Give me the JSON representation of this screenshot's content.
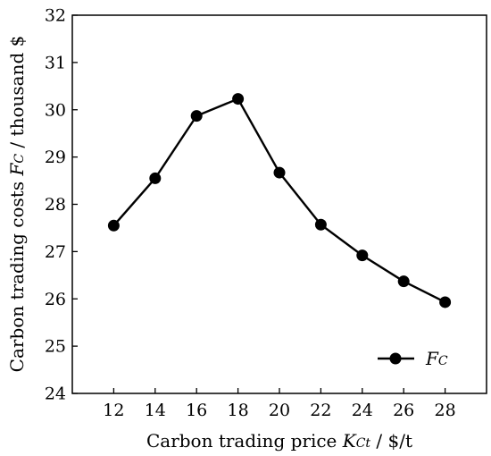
{
  "chart_data": {
    "type": "line",
    "x": [
      12,
      14,
      16,
      18,
      20,
      22,
      24,
      26,
      28
    ],
    "series": [
      {
        "name": "FC",
        "name_main": "F",
        "name_sub": "C",
        "values": [
          27.55,
          28.55,
          29.87,
          30.23,
          28.67,
          27.57,
          26.92,
          26.37,
          25.93
        ]
      }
    ],
    "xlabel": {
      "prefix": "Carbon trading price ",
      "symbol": "K",
      "sub": "Ct",
      "suffix": " / $/t"
    },
    "ylabel": {
      "prefix": "Carbon trading costs ",
      "symbol": "F",
      "sub": "C",
      "suffix": "  / thousand $"
    },
    "xticks": [
      12,
      14,
      16,
      18,
      20,
      22,
      24,
      26,
      28
    ],
    "yticks": [
      24,
      25,
      26,
      27,
      28,
      29,
      30,
      31,
      32
    ],
    "xlim": [
      10,
      30
    ],
    "ylim": [
      24,
      32
    ],
    "grid": false,
    "legend_position": "bottom-right",
    "line_color": "#000000",
    "marker": "filled-circle"
  }
}
